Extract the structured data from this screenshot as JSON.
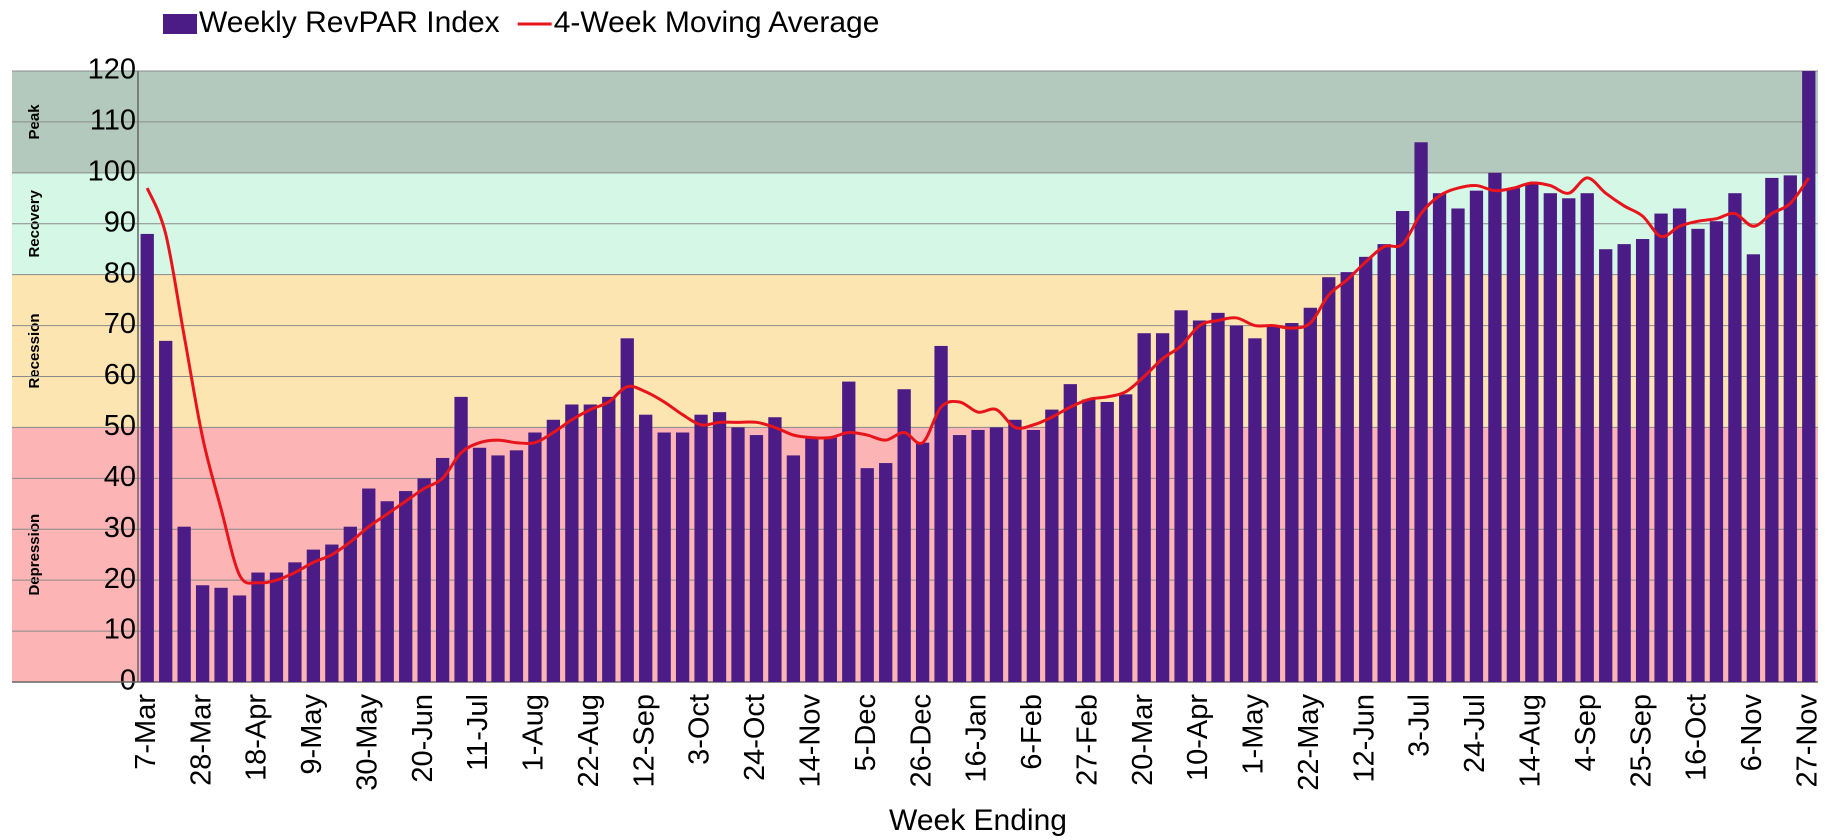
{
  "chart_data": {
    "type": "bar",
    "x_label": "Week Ending",
    "categories": [
      "7-Mar",
      null,
      null,
      "28-Mar",
      null,
      null,
      "18-Apr",
      null,
      null,
      "9-May",
      null,
      null,
      "30-May",
      null,
      null,
      "20-Jun",
      null,
      null,
      "11-Jul",
      null,
      null,
      "1-Aug",
      null,
      null,
      "22-Aug",
      null,
      null,
      "12-Sep",
      null,
      null,
      "3-Oct",
      null,
      null,
      "24-Oct",
      null,
      null,
      "14-Nov",
      null,
      null,
      "5-Dec",
      null,
      null,
      "26-Dec",
      null,
      null,
      "16-Jan",
      null,
      null,
      "6-Feb",
      null,
      null,
      "27-Feb",
      null,
      null,
      "20-Mar",
      null,
      null,
      "10-Apr",
      null,
      null,
      "1-May",
      null,
      null,
      "22-May",
      null,
      null,
      "12-Jun",
      null,
      null,
      "3-Jul",
      null,
      null,
      "24-Jul",
      null,
      null,
      "14-Aug",
      null,
      null,
      "4-Sep",
      null,
      null,
      "25-Sep",
      null,
      null,
      "16-Oct",
      null,
      null,
      "6-Nov",
      null,
      null,
      "27-Nov"
    ],
    "series": [
      {
        "name": "Weekly RevPAR Index",
        "type": "bar",
        "color": "#4b1c86",
        "values": [
          88,
          67,
          30.5,
          19,
          18.5,
          17,
          21.5,
          21.5,
          23.5,
          26,
          27,
          30.5,
          38,
          35.5,
          37.5,
          40,
          44,
          56,
          46,
          44.5,
          45.5,
          49,
          51.5,
          54.5,
          54.5,
          56,
          67.5,
          52.5,
          49,
          49,
          52.5,
          53,
          50,
          48.5,
          52,
          44.5,
          48,
          48,
          59,
          42,
          43,
          57.5,
          47,
          66,
          48.5,
          49.5,
          50,
          51.5,
          49.5,
          53.5,
          58.5,
          55.5,
          55,
          56.5,
          68.5,
          68.5,
          73,
          71,
          72.5,
          70,
          67.5,
          70,
          70.5,
          73.5,
          79.5,
          80.5,
          83.5,
          86,
          92.5,
          106,
          96,
          93,
          96.5,
          100,
          97,
          98,
          96,
          95,
          96,
          85,
          86,
          87,
          92,
          93,
          89,
          90.5,
          96,
          84,
          99,
          99.5,
          120
        ]
      },
      {
        "name": "4-Week Moving Average",
        "type": "line",
        "color": "#e8141c",
        "values": [
          97,
          88,
          68,
          48,
          34,
          21,
          19.5,
          20,
          21.5,
          23.5,
          25,
          27.5,
          30.5,
          33,
          35.5,
          38,
          40,
          45,
          47,
          47.5,
          47,
          47,
          49,
          51.5,
          53.5,
          55,
          58,
          57,
          55,
          52.5,
          50.5,
          51,
          51,
          51,
          50,
          48.5,
          48,
          48,
          49,
          48.5,
          47.5,
          49,
          47,
          54,
          55,
          53,
          53.5,
          50,
          50.5,
          52,
          54,
          55.5,
          56,
          57,
          60,
          63.5,
          66,
          70,
          71,
          71.5,
          70,
          70,
          69.5,
          70.5,
          76,
          79,
          82.5,
          85.5,
          86,
          92,
          95.5,
          97,
          97.5,
          96.5,
          97,
          98,
          97.5,
          96,
          99,
          96,
          93.5,
          91.5,
          87.5,
          89.5,
          90.5,
          91,
          92,
          89.5,
          92,
          94,
          99
        ]
      }
    ],
    "bands": [
      {
        "label": "Peak",
        "from": 100,
        "to": 120,
        "color": "#b3c9bd"
      },
      {
        "label": "Recovery",
        "from": 80,
        "to": 100,
        "color": "#d4f7e6"
      },
      {
        "label": "Recession",
        "from": 50,
        "to": 80,
        "color": "#fde5b2"
      },
      {
        "label": "Depression",
        "from": 0,
        "to": 50,
        "color": "#fdb4b4"
      }
    ],
    "ylim": [
      0,
      120
    ],
    "yticks": [
      0,
      10,
      20,
      30,
      40,
      50,
      60,
      70,
      80,
      90,
      100,
      110,
      120
    ],
    "grid": true,
    "legend": "top"
  }
}
